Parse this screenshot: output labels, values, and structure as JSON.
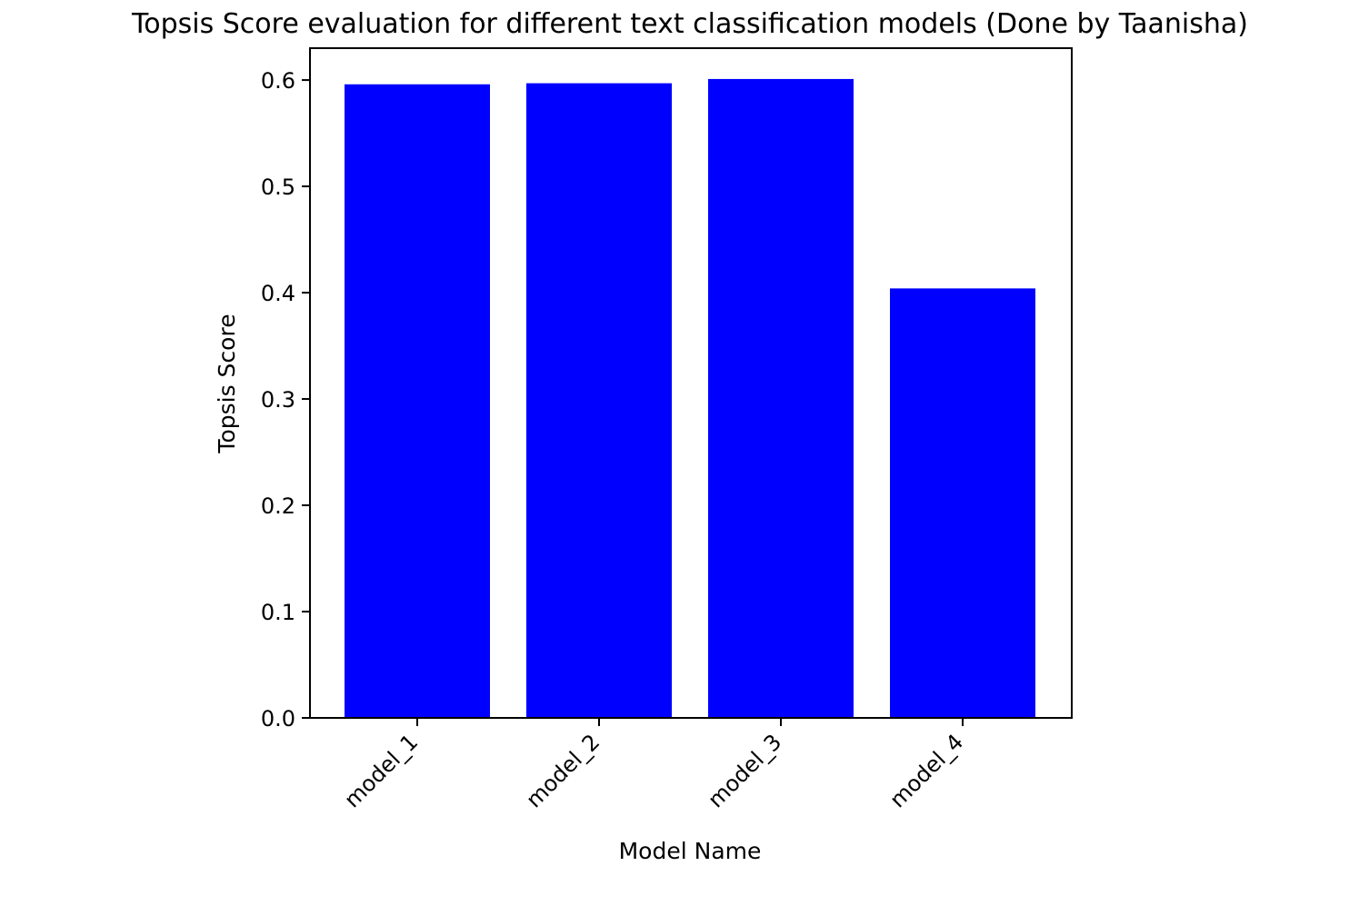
{
  "chart_data": {
    "type": "bar",
    "title": "Topsis Score evaluation for different text classification models (Done by Taanisha)",
    "xlabel": "Model Name",
    "ylabel": "Topsis Score",
    "categories": [
      "model_1",
      "model_2",
      "model_3",
      "model_4"
    ],
    "values": [
      0.596,
      0.597,
      0.601,
      0.404
    ],
    "ylim": [
      0.0,
      0.63
    ],
    "yticks": [
      0.0,
      0.1,
      0.2,
      0.3,
      0.4,
      0.5,
      0.6
    ],
    "ytick_labels": [
      "0.0",
      "0.1",
      "0.2",
      "0.3",
      "0.4",
      "0.5",
      "0.6"
    ],
    "bar_color": "#0000ff",
    "grid": false,
    "legend": false,
    "xtick_rotation": "45deg"
  }
}
